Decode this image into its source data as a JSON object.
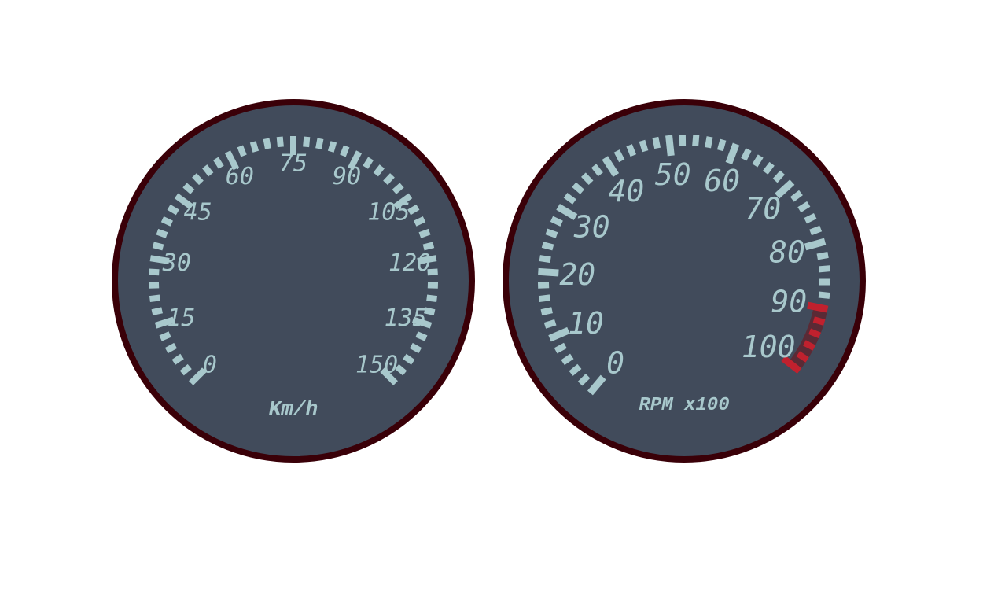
{
  "colors": {
    "face": "#414b5b",
    "rim": "#3a0008",
    "tick": "#a8c8cc",
    "redline": "#c0212e"
  },
  "gauges": [
    {
      "id": "speed",
      "unit": "Km/h",
      "min": 0,
      "max": 150,
      "major_step": 15,
      "minor_step": 3,
      "sweep_start_deg": -135,
      "sweep_end_deg": 135,
      "labels": [
        "0",
        "15",
        "30",
        "45",
        "60",
        "75",
        "90",
        "105",
        "120",
        "135",
        "150"
      ],
      "redline_from": null
    },
    {
      "id": "rpm",
      "unit": "RPM x100",
      "min": 0,
      "max": 100,
      "major_step": 10,
      "minor_step": 2,
      "sweep_start_deg": -140,
      "sweep_end_deg": 128,
      "labels": [
        "0",
        "10",
        "20",
        "30",
        "40",
        "50",
        "60",
        "70",
        "80",
        "90",
        "100"
      ],
      "redline_from": 90
    }
  ]
}
